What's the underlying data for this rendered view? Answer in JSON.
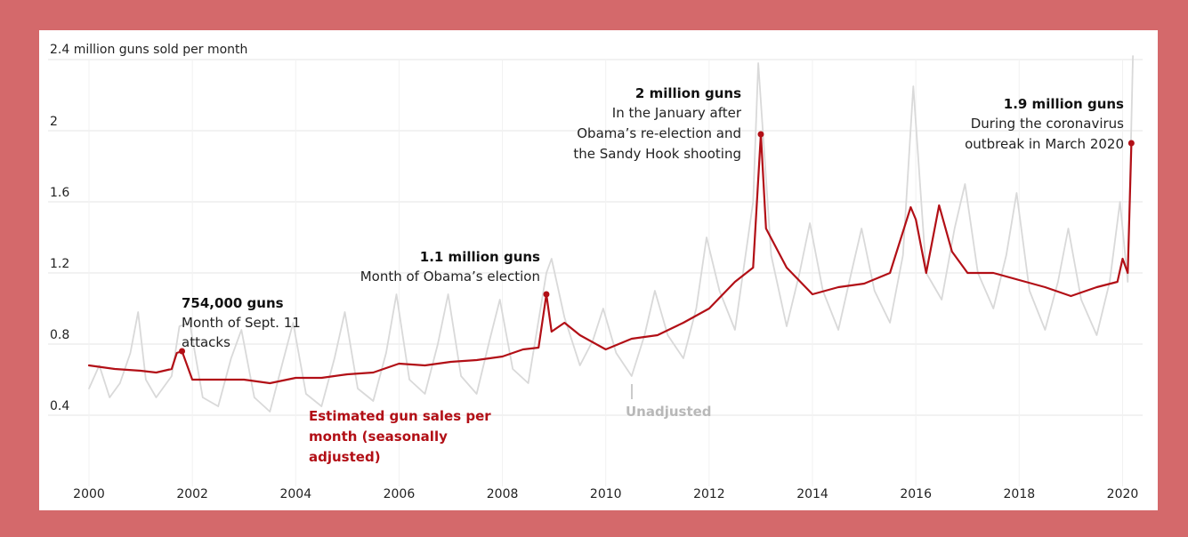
{
  "chart_data": {
    "type": "line",
    "title": "",
    "ylabel": "2.4 million guns sold per month",
    "xlabel": "",
    "y_ticks": [
      {
        "value": 0.4,
        "label": "0.4"
      },
      {
        "value": 0.8,
        "label": "0.8"
      },
      {
        "value": 1.2,
        "label": "1.2"
      },
      {
        "value": 1.6,
        "label": "1.6"
      },
      {
        "value": 2.0,
        "label": "2"
      },
      {
        "value": 2.4,
        "label": "2.4"
      }
    ],
    "x_ticks": [
      {
        "value": 2000,
        "label": "2000"
      },
      {
        "value": 2002,
        "label": "2002"
      },
      {
        "value": 2004,
        "label": "2004"
      },
      {
        "value": 2006,
        "label": "2006"
      },
      {
        "value": 2008,
        "label": "2008"
      },
      {
        "value": 2010,
        "label": "2010"
      },
      {
        "value": 2012,
        "label": "2012"
      },
      {
        "value": 2014,
        "label": "2014"
      },
      {
        "value": 2016,
        "label": "2016"
      },
      {
        "value": 2018,
        "label": "2018"
      },
      {
        "value": 2020,
        "label": "2020"
      }
    ],
    "xlim": [
      2000,
      2020.25
    ],
    "ylim": [
      0,
      2.4
    ],
    "grid": "horizontal",
    "series": [
      {
        "name": "Estimated gun sales per month (seasonally adjusted)",
        "color": "#b20f16",
        "points": [
          [
            2000.0,
            0.68
          ],
          [
            2000.5,
            0.66
          ],
          [
            2001.0,
            0.65
          ],
          [
            2001.3,
            0.64
          ],
          [
            2001.6,
            0.66
          ],
          [
            2001.7,
            0.75
          ],
          [
            2001.8,
            0.76
          ],
          [
            2001.9,
            0.68
          ],
          [
            2002.0,
            0.6
          ],
          [
            2002.5,
            0.6
          ],
          [
            2003.0,
            0.6
          ],
          [
            2003.5,
            0.58
          ],
          [
            2004.0,
            0.61
          ],
          [
            2004.5,
            0.61
          ],
          [
            2005.0,
            0.63
          ],
          [
            2005.5,
            0.64
          ],
          [
            2006.0,
            0.69
          ],
          [
            2006.5,
            0.68
          ],
          [
            2007.0,
            0.7
          ],
          [
            2007.5,
            0.71
          ],
          [
            2008.0,
            0.73
          ],
          [
            2008.4,
            0.77
          ],
          [
            2008.7,
            0.78
          ],
          [
            2008.85,
            1.08
          ],
          [
            2008.95,
            0.87
          ],
          [
            2009.2,
            0.92
          ],
          [
            2009.5,
            0.85
          ],
          [
            2010.0,
            0.77
          ],
          [
            2010.5,
            0.83
          ],
          [
            2011.0,
            0.85
          ],
          [
            2011.5,
            0.92
          ],
          [
            2012.0,
            1.0
          ],
          [
            2012.5,
            1.15
          ],
          [
            2012.85,
            1.23
          ],
          [
            2013.0,
            1.98
          ],
          [
            2013.1,
            1.45
          ],
          [
            2013.5,
            1.23
          ],
          [
            2014.0,
            1.08
          ],
          [
            2014.5,
            1.12
          ],
          [
            2015.0,
            1.14
          ],
          [
            2015.5,
            1.2
          ],
          [
            2015.9,
            1.57
          ],
          [
            2016.0,
            1.5
          ],
          [
            2016.2,
            1.2
          ],
          [
            2016.45,
            1.58
          ],
          [
            2016.7,
            1.32
          ],
          [
            2017.0,
            1.2
          ],
          [
            2017.5,
            1.2
          ],
          [
            2018.0,
            1.16
          ],
          [
            2018.5,
            1.12
          ],
          [
            2019.0,
            1.07
          ],
          [
            2019.5,
            1.12
          ],
          [
            2019.9,
            1.15
          ],
          [
            2020.0,
            1.28
          ],
          [
            2020.1,
            1.2
          ],
          [
            2020.17,
            1.93
          ]
        ]
      },
      {
        "name": "Unadjusted",
        "color": "#d9d9d9",
        "points": [
          [
            2000.0,
            0.55
          ],
          [
            2000.2,
            0.68
          ],
          [
            2000.4,
            0.5
          ],
          [
            2000.6,
            0.58
          ],
          [
            2000.8,
            0.75
          ],
          [
            2000.95,
            0.98
          ],
          [
            2001.1,
            0.6
          ],
          [
            2001.3,
            0.5
          ],
          [
            2001.6,
            0.62
          ],
          [
            2001.75,
            0.9
          ],
          [
            2001.95,
            0.92
          ],
          [
            2002.2,
            0.5
          ],
          [
            2002.5,
            0.45
          ],
          [
            2002.75,
            0.72
          ],
          [
            2002.95,
            0.88
          ],
          [
            2003.2,
            0.5
          ],
          [
            2003.5,
            0.42
          ],
          [
            2003.75,
            0.7
          ],
          [
            2003.95,
            0.92
          ],
          [
            2004.2,
            0.52
          ],
          [
            2004.5,
            0.45
          ],
          [
            2004.75,
            0.72
          ],
          [
            2004.95,
            0.98
          ],
          [
            2005.2,
            0.55
          ],
          [
            2005.5,
            0.48
          ],
          [
            2005.75,
            0.75
          ],
          [
            2005.95,
            1.08
          ],
          [
            2006.2,
            0.6
          ],
          [
            2006.5,
            0.52
          ],
          [
            2006.75,
            0.8
          ],
          [
            2006.95,
            1.08
          ],
          [
            2007.2,
            0.62
          ],
          [
            2007.5,
            0.52
          ],
          [
            2007.75,
            0.82
          ],
          [
            2007.95,
            1.05
          ],
          [
            2008.2,
            0.66
          ],
          [
            2008.5,
            0.58
          ],
          [
            2008.85,
            1.2
          ],
          [
            2008.95,
            1.28
          ],
          [
            2009.2,
            0.95
          ],
          [
            2009.5,
            0.68
          ],
          [
            2009.75,
            0.82
          ],
          [
            2009.95,
            1.0
          ],
          [
            2010.2,
            0.75
          ],
          [
            2010.5,
            0.62
          ],
          [
            2010.75,
            0.85
          ],
          [
            2010.95,
            1.1
          ],
          [
            2011.2,
            0.85
          ],
          [
            2011.5,
            0.72
          ],
          [
            2011.75,
            1.0
          ],
          [
            2011.95,
            1.4
          ],
          [
            2012.2,
            1.1
          ],
          [
            2012.5,
            0.88
          ],
          [
            2012.85,
            1.6
          ],
          [
            2012.95,
            2.38
          ],
          [
            2013.2,
            1.3
          ],
          [
            2013.5,
            0.9
          ],
          [
            2013.75,
            1.2
          ],
          [
            2013.95,
            1.48
          ],
          [
            2014.2,
            1.1
          ],
          [
            2014.5,
            0.88
          ],
          [
            2014.75,
            1.2
          ],
          [
            2014.95,
            1.45
          ],
          [
            2015.2,
            1.1
          ],
          [
            2015.5,
            0.92
          ],
          [
            2015.75,
            1.3
          ],
          [
            2015.95,
            2.25
          ],
          [
            2016.2,
            1.2
          ],
          [
            2016.5,
            1.05
          ],
          [
            2016.75,
            1.45
          ],
          [
            2016.95,
            1.7
          ],
          [
            2017.2,
            1.2
          ],
          [
            2017.5,
            1.0
          ],
          [
            2017.75,
            1.3
          ],
          [
            2017.95,
            1.65
          ],
          [
            2018.2,
            1.1
          ],
          [
            2018.5,
            0.88
          ],
          [
            2018.75,
            1.15
          ],
          [
            2018.95,
            1.45
          ],
          [
            2019.2,
            1.05
          ],
          [
            2019.5,
            0.85
          ],
          [
            2019.75,
            1.15
          ],
          [
            2019.95,
            1.6
          ],
          [
            2020.1,
            1.15
          ],
          [
            2020.2,
            2.42
          ]
        ]
      }
    ],
    "annotations": [
      {
        "x": 2001.8,
        "y": 0.76,
        "title": "754,000 guns",
        "lines": [
          "Month of Sept. 11",
          "attacks"
        ]
      },
      {
        "x": 2008.85,
        "y": 1.08,
        "title": "1.1 million guns",
        "lines": [
          "Month of Obama’s election"
        ]
      },
      {
        "x": 2013.0,
        "y": 1.98,
        "title": "2 million guns",
        "lines": [
          "In the January after",
          "Obama’s re-election and",
          "the Sandy Hook shooting"
        ]
      },
      {
        "x": 2020.17,
        "y": 1.93,
        "title": "1.9 million guns",
        "lines": [
          "During the coronavirus",
          "outbreak in March 2020"
        ]
      }
    ],
    "series_labels": {
      "adjusted": [
        "Estimated gun sales per",
        "month (seasonally",
        "adjusted)"
      ],
      "unadjusted": "Unadjusted"
    }
  }
}
